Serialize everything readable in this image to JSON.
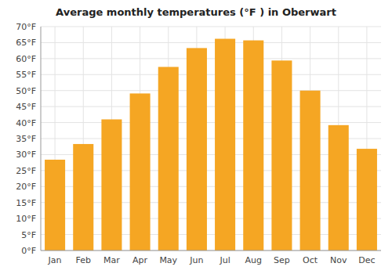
{
  "chart_data": {
    "type": "bar",
    "title": "Average monthly temperatures (°F ) in Oberwart",
    "categories": [
      "Jan",
      "Feb",
      "Mar",
      "Apr",
      "May",
      "Jun",
      "Jul",
      "Aug",
      "Sep",
      "Oct",
      "Nov",
      "Dec"
    ],
    "values": [
      28.4,
      33.3,
      41.0,
      49.1,
      57.4,
      63.3,
      66.2,
      65.7,
      59.4,
      50.0,
      39.2,
      31.8
    ],
    "color": "#F5A623",
    "ylim": [
      0,
      70
    ],
    "yticks": [
      {
        "value": 0,
        "label": "0°F"
      },
      {
        "value": 5,
        "label": "5°F"
      },
      {
        "value": 10,
        "label": "10°F"
      },
      {
        "value": 15,
        "label": "15°F"
      },
      {
        "value": 20,
        "label": "20°F"
      },
      {
        "value": 25,
        "label": "25°F"
      },
      {
        "value": 30,
        "label": "30°F"
      },
      {
        "value": 35,
        "label": "35°F"
      },
      {
        "value": 40,
        "label": "40°F"
      },
      {
        "value": 45,
        "label": "45°F"
      },
      {
        "value": 50,
        "label": "50°F"
      },
      {
        "value": 55,
        "label": "55°F"
      },
      {
        "value": 60,
        "label": "60°F"
      },
      {
        "value": 65,
        "label": "65°F"
      },
      {
        "value": 70,
        "label": "70°F"
      }
    ],
    "grid": true
  }
}
